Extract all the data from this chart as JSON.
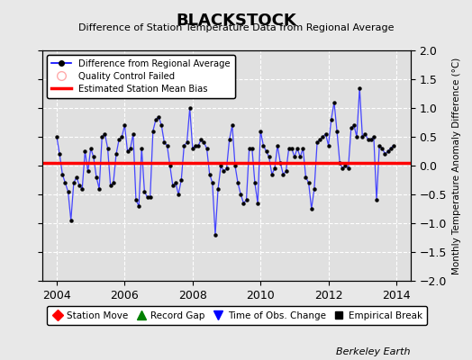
{
  "title": "BLACKSTOCK",
  "subtitle": "Difference of Station Temperature Data from Regional Average",
  "ylabel": "Monthly Temperature Anomaly Difference (°C)",
  "credit": "Berkeley Earth",
  "bias_value": 0.05,
  "ylim": [
    -2,
    2
  ],
  "xlim": [
    2003.58,
    2014.42
  ],
  "bg_color": "#e8e8e8",
  "plot_bg_color": "#e0e0e0",
  "grid_color": "white",
  "line_color": "#4444ff",
  "bias_color": "red",
  "x_ticks": [
    2004,
    2006,
    2008,
    2010,
    2012,
    2014
  ],
  "y_ticks": [
    -2,
    -1.5,
    -1,
    -0.5,
    0,
    0.5,
    1,
    1.5,
    2
  ],
  "data_x": [
    2004.0,
    2004.083,
    2004.167,
    2004.25,
    2004.333,
    2004.417,
    2004.5,
    2004.583,
    2004.667,
    2004.75,
    2004.833,
    2004.917,
    2005.0,
    2005.083,
    2005.167,
    2005.25,
    2005.333,
    2005.417,
    2005.5,
    2005.583,
    2005.667,
    2005.75,
    2005.833,
    2005.917,
    2006.0,
    2006.083,
    2006.167,
    2006.25,
    2006.333,
    2006.417,
    2006.5,
    2006.583,
    2006.667,
    2006.75,
    2006.833,
    2006.917,
    2007.0,
    2007.083,
    2007.167,
    2007.25,
    2007.333,
    2007.417,
    2007.5,
    2007.583,
    2007.667,
    2007.75,
    2007.833,
    2007.917,
    2008.0,
    2008.083,
    2008.167,
    2008.25,
    2008.333,
    2008.417,
    2008.5,
    2008.583,
    2008.667,
    2008.75,
    2008.833,
    2008.917,
    2009.0,
    2009.083,
    2009.167,
    2009.25,
    2009.333,
    2009.417,
    2009.5,
    2009.583,
    2009.667,
    2009.75,
    2009.833,
    2009.917,
    2010.0,
    2010.083,
    2010.167,
    2010.25,
    2010.333,
    2010.417,
    2010.5,
    2010.583,
    2010.667,
    2010.75,
    2010.833,
    2010.917,
    2011.0,
    2011.083,
    2011.167,
    2011.25,
    2011.333,
    2011.417,
    2011.5,
    2011.583,
    2011.667,
    2011.75,
    2011.833,
    2011.917,
    2012.0,
    2012.083,
    2012.167,
    2012.25,
    2012.333,
    2012.417,
    2012.5,
    2012.583,
    2012.667,
    2012.75,
    2012.833,
    2012.917,
    2013.0,
    2013.083,
    2013.167,
    2013.25,
    2013.333,
    2013.417,
    2013.5,
    2013.583,
    2013.667,
    2013.75,
    2013.833,
    2013.917
  ],
  "data_y": [
    0.5,
    0.2,
    -0.15,
    -0.3,
    -0.45,
    -0.95,
    -0.3,
    -0.2,
    -0.35,
    -0.4,
    0.25,
    -0.1,
    0.3,
    0.15,
    -0.2,
    -0.4,
    0.5,
    0.55,
    0.3,
    -0.35,
    -0.3,
    0.2,
    0.45,
    0.5,
    0.7,
    0.25,
    0.3,
    0.55,
    -0.6,
    -0.7,
    0.3,
    -0.45,
    -0.55,
    -0.55,
    0.6,
    0.8,
    0.85,
    0.7,
    0.4,
    0.35,
    0.0,
    -0.35,
    -0.3,
    -0.5,
    -0.25,
    0.35,
    0.4,
    1.0,
    0.3,
    0.35,
    0.35,
    0.45,
    0.4,
    0.3,
    -0.15,
    -0.3,
    -1.2,
    -0.4,
    0.0,
    -0.1,
    -0.05,
    0.45,
    0.7,
    0.0,
    -0.3,
    -0.5,
    -0.65,
    -0.6,
    0.3,
    0.3,
    -0.3,
    -0.65,
    0.6,
    0.35,
    0.25,
    0.15,
    -0.15,
    -0.05,
    0.35,
    0.05,
    -0.15,
    -0.1,
    0.3,
    0.3,
    0.15,
    0.3,
    0.15,
    0.3,
    -0.2,
    -0.3,
    -0.75,
    -0.4,
    0.4,
    0.45,
    0.5,
    0.55,
    0.35,
    0.8,
    1.1,
    0.6,
    0.05,
    -0.05,
    0.0,
    -0.05,
    0.65,
    0.7,
    0.5,
    1.35,
    0.5,
    0.55,
    0.45,
    0.45,
    0.5,
    -0.6,
    0.35,
    0.3,
    0.2,
    0.25,
    0.3,
    0.35
  ]
}
